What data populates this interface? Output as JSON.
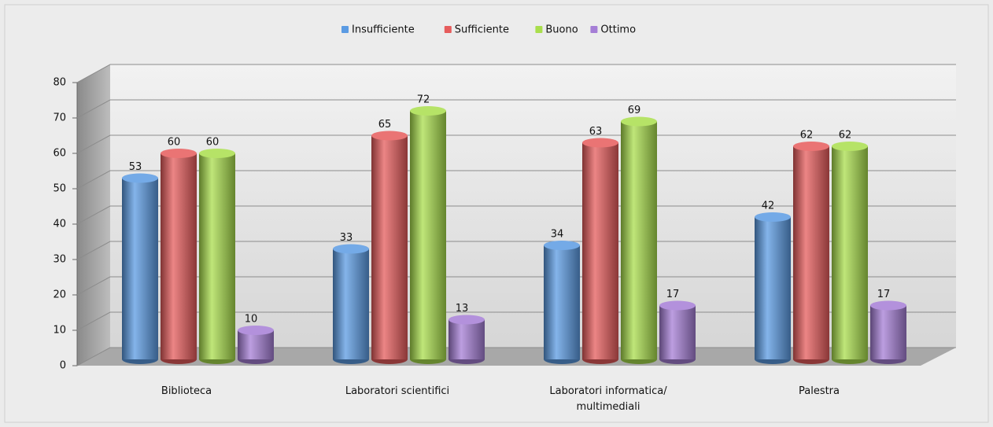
{
  "chart_data": {
    "type": "bar3d",
    "categories": [
      "Biblioteca",
      "Laboratori scientifici",
      "Laboratori informatica/\nmultimediali",
      "Palestra"
    ],
    "series": [
      {
        "name": "Insufficiente",
        "color": "#5b9be3",
        "values": [
          53,
          33,
          34,
          42
        ]
      },
      {
        "name": "Sufficiente",
        "color": "#e65c5c",
        "values": [
          60,
          65,
          63,
          62
        ]
      },
      {
        "name": "Buono",
        "color": "#a9de4c",
        "values": [
          60,
          72,
          69,
          62
        ]
      },
      {
        "name": "Ottimo",
        "color": "#a57ed6",
        "values": [
          10,
          13,
          17,
          17
        ]
      }
    ],
    "ylim": [
      0,
      80
    ],
    "yticks": [
      0,
      10,
      20,
      30,
      40,
      50,
      60,
      70,
      80
    ],
    "grid": true,
    "legend": "top"
  }
}
